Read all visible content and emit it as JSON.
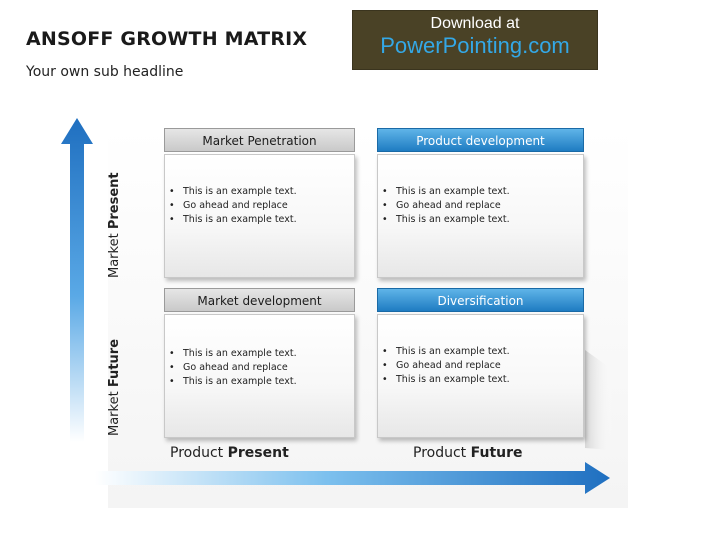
{
  "header": {
    "title": "ANSOFF GROWTH MATRIX",
    "subtitle": "Your own sub headline"
  },
  "banner": {
    "line1": "Download at",
    "line2": "PowerPointing.com"
  },
  "axes": {
    "y_top": {
      "prefix": "Market ",
      "bold": "Present"
    },
    "y_bottom": {
      "prefix": "Market ",
      "bold": "Future"
    },
    "x_left": {
      "prefix": "Product ",
      "bold": "Present"
    },
    "x_right": {
      "prefix": "Product ",
      "bold": "Future"
    }
  },
  "quadrants": [
    {
      "title": "Market Penetration",
      "style": "gray",
      "bullets": [
        "This is an example text.",
        "Go ahead and replace",
        "This is an example text."
      ]
    },
    {
      "title": "Product development",
      "style": "blue",
      "bullets": [
        "This is an example text.",
        "Go ahead and replace",
        "This is an example text."
      ]
    },
    {
      "title": "Market development",
      "style": "gray",
      "bullets": [
        "This is an example text.",
        "Go ahead and replace",
        "This is an example text."
      ]
    },
    {
      "title": "Diversification",
      "style": "blue",
      "bullets": [
        "This is an example text.",
        "Go ahead and replace",
        "This is an example text."
      ]
    }
  ],
  "bullet_char": "•",
  "colors": {
    "arrow_blue": "#1f6fc0",
    "header_blue": "#1f7cc2",
    "banner_bg": "#4a4226",
    "banner_link": "#34a8e6"
  }
}
